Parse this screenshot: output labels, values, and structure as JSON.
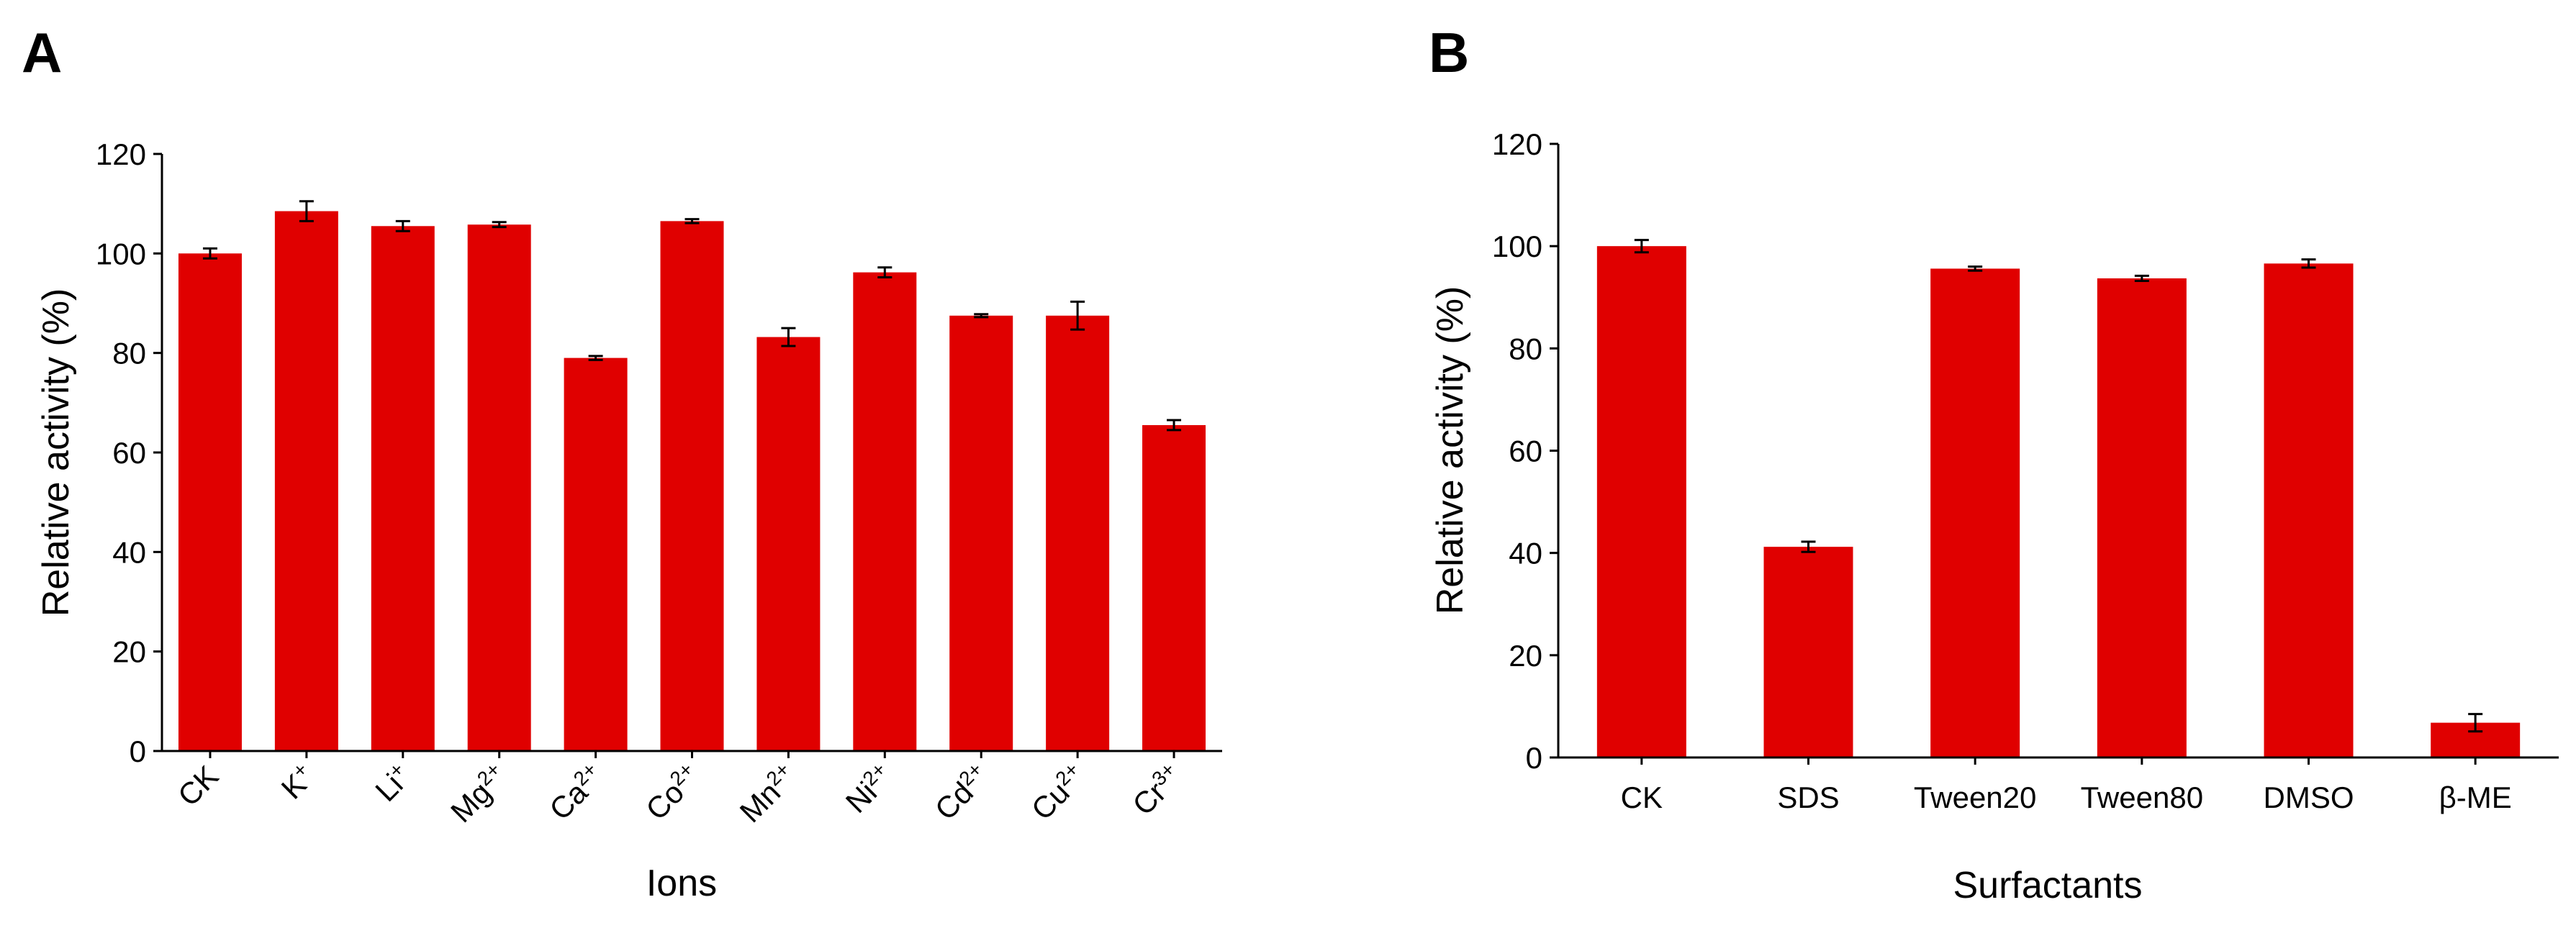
{
  "chart_data": [
    {
      "type": "bar",
      "panel_label": "A",
      "title": "",
      "xlabel": "Ions",
      "ylabel": "Relative activity (%)",
      "ylim": [
        0,
        120
      ],
      "yticks": [
        "0",
        "20",
        "40",
        "60",
        "80",
        "100",
        "120"
      ],
      "categories": [
        {
          "base": "CK",
          "sup": ""
        },
        {
          "base": "K",
          "sup": "+"
        },
        {
          "base": "Li",
          "sup": "+"
        },
        {
          "base": "Mg",
          "sup": "2+"
        },
        {
          "base": "Ca",
          "sup": "2+"
        },
        {
          "base": "Co",
          "sup": "2+"
        },
        {
          "base": "Mn",
          "sup": "2+"
        },
        {
          "base": "Ni",
          "sup": "2+"
        },
        {
          "base": "Cd",
          "sup": "2+"
        },
        {
          "base": "Cu",
          "sup": "2+"
        },
        {
          "base": "Cr",
          "sup": "3+"
        }
      ],
      "values": [
        100,
        108.5,
        105.5,
        105.8,
        79,
        106.5,
        83.2,
        96.2,
        87.5,
        87.5,
        65.5
      ],
      "errors": [
        1,
        2,
        1,
        0.5,
        0.4,
        0.4,
        1.8,
        1,
        0.3,
        2.8,
        1
      ],
      "bar_color": "#E00000",
      "tick_rotation": -45
    },
    {
      "type": "bar",
      "panel_label": "B",
      "title": "",
      "xlabel": "Surfactants",
      "ylabel": "Relative activity (%)",
      "ylim": [
        0,
        120
      ],
      "yticks": [
        "0",
        "20",
        "40",
        "60",
        "80",
        "100",
        "120"
      ],
      "categories": [
        {
          "base": "CK",
          "sup": ""
        },
        {
          "base": "SDS",
          "sup": ""
        },
        {
          "base": "Tween20",
          "sup": ""
        },
        {
          "base": "Tween80",
          "sup": ""
        },
        {
          "base": "DMSO",
          "sup": ""
        },
        {
          "base": "β-ME",
          "sup": ""
        }
      ],
      "values": [
        100,
        41.2,
        95.6,
        93.7,
        96.6,
        6.8
      ],
      "errors": [
        1.2,
        1,
        0.4,
        0.5,
        0.8,
        1.7
      ],
      "bar_color": "#E00000",
      "tick_rotation": 0
    }
  ]
}
